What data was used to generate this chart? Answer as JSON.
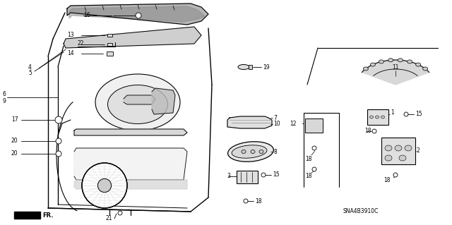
{
  "bg_color": "#ffffff",
  "line_color": "#000000",
  "diagram_code": "SNA4B3910C",
  "gray_light": "#cccccc",
  "gray_med": "#999999",
  "gray_dark": "#666666"
}
